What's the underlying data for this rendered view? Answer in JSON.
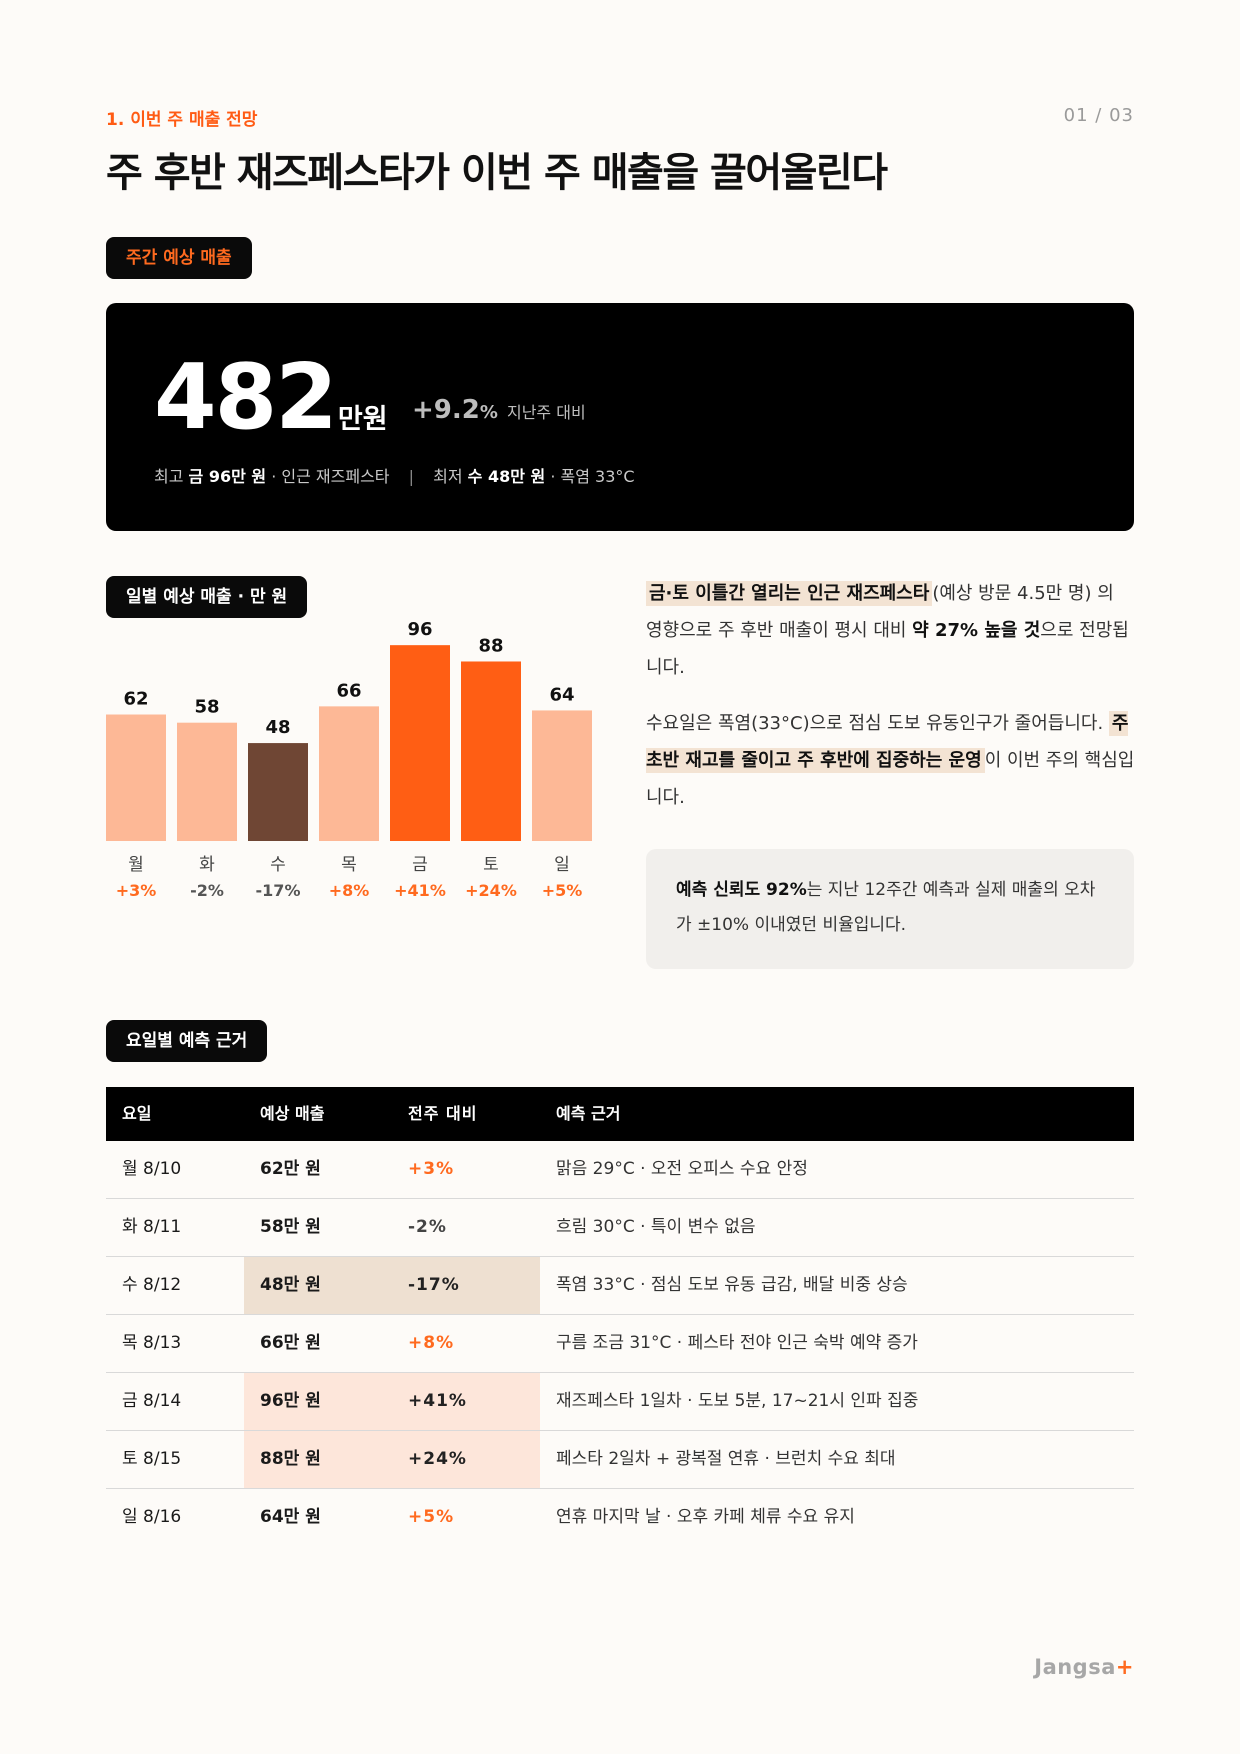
{
  "header": {
    "section_label": "1. 이번 주 매출 전망",
    "page_number": "01 / 03",
    "title": "주 후반 재즈페스타가 이번 주 매출을 끌어올린다"
  },
  "weekly": {
    "pill": "주간 예상 매출",
    "amount": "482",
    "unit": "만원",
    "change_value": "+9.2",
    "change_sign": "%",
    "change_label": "지난주 대비",
    "max_label": "최고",
    "max_value": "금 96만 원",
    "max_reason": "· 인근 재즈페스타",
    "separator": "|",
    "min_label": "최저",
    "min_value": "수 48만 원",
    "min_reason": "· 폭염 33°C"
  },
  "daily_pill": "일별 예상 매출 · 만 원",
  "chart_data": {
    "type": "bar",
    "categories": [
      "월",
      "화",
      "수",
      "목",
      "금",
      "토",
      "일"
    ],
    "values": [
      62,
      58,
      48,
      66,
      96,
      88,
      64
    ],
    "changes": [
      "+3%",
      "-2%",
      "-17%",
      "+8%",
      "+41%",
      "+24%",
      "+5%"
    ],
    "title": "일별 예상 매출 · 만 원",
    "xlabel": "",
    "ylabel": "",
    "ylim": [
      0,
      100
    ],
    "grid": false,
    "bar_colors": [
      "#fdb896",
      "#fdb896",
      "#6f4634",
      "#fdb896",
      "#ff5e14",
      "#ff5e14",
      "#fdb896"
    ],
    "change_colors": [
      "#ff6a1f",
      "#555555",
      "#555555",
      "#ff6a1f",
      "#ff6a1f",
      "#ff6a1f",
      "#ff6a1f"
    ]
  },
  "insight": {
    "p1_highlight": "금·토 이틀간 열리는 인근 재즈페스타",
    "p1_text1": "(예상 방문 4.5만 명) 의 영향으로 주 후반 매출이 평시 대비 ",
    "p1_bold": "약 27% 높을 것",
    "p1_text2": "으로 전망됩니다.",
    "p2_text1": "수요일은 폭염(33°C)으로 점심 도보 유동인구가 줄어듭니다. ",
    "p2_highlight": "주 초반 재고를 줄이고 주 후반에 집중하는 운영",
    "p2_text2": "이 이번 주의 핵심입니다."
  },
  "note": {
    "bold": "예측 신뢰도 92%",
    "text": "는 지난 12주간 예측과 실제 매출의 오차가 ±10% 이내였던 비율입니다."
  },
  "table_pill": "요일별 예측 근거",
  "table": {
    "headers": [
      "요일",
      "예상 매출",
      "전주 대비",
      "예측 근거"
    ],
    "rows": [
      {
        "day": "월 8/10",
        "sales": "62만 원",
        "change": "+3%",
        "reason": "맑음 29°C · 오전 오피스 수요 안정"
      },
      {
        "day": "화 8/11",
        "sales": "58만 원",
        "change": "-2%",
        "reason": "흐림 30°C · 특이 변수 없음"
      },
      {
        "day": "수 8/12",
        "sales": "48만 원",
        "change": "-17%",
        "reason": "폭염 33°C · 점심 도보 유동 급감, 배달 비중 상승"
      },
      {
        "day": "목 8/13",
        "sales": "66만 원",
        "change": "+8%",
        "reason": "구름 조금 31°C · 페스타 전야 인근 숙박 예약 증가"
      },
      {
        "day": "금 8/14",
        "sales": "96만 원",
        "change": "+41%",
        "reason": "재즈페스타 1일차 · 도보 5분, 17~21시 인파 집중"
      },
      {
        "day": "토 8/15",
        "sales": "88만 원",
        "change": "+24%",
        "reason": "페스타 2일차 + 광복절 연휴 · 브런치 수요 최대"
      },
      {
        "day": "일 8/16",
        "sales": "64만 원",
        "change": "+5%",
        "reason": "연휴 마지막 날 · 오후 카페 체류 수요 유지"
      }
    ]
  },
  "logo": {
    "text": "Jangsa",
    "plus": "+"
  }
}
